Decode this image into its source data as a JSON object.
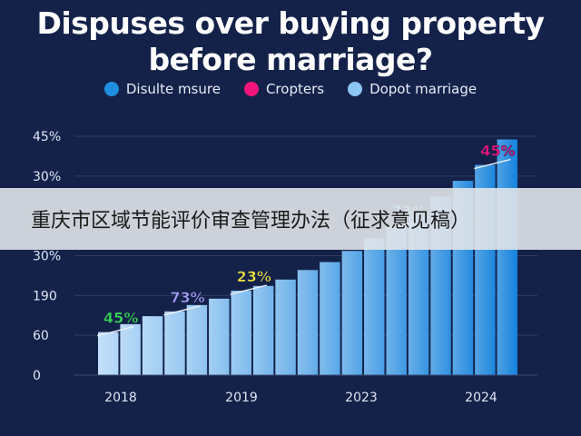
{
  "title_line1": "Dispuses over buying property",
  "title_line2": "before marriage?",
  "legend": [
    {
      "label": "Disulte msure",
      "color": "#1f8fe0"
    },
    {
      "label": "Cropters",
      "color": "#f2157c"
    },
    {
      "label": "Dopot marriage",
      "color": "#8cc6f2"
    }
  ],
  "banner_text": "重庆市区域节能评价审查管理办法（征求意见稿）",
  "chart_data": {
    "type": "bar",
    "y_tick_labels": [
      "0",
      "60",
      "190",
      "30%",
      "",
      "30%",
      "45%"
    ],
    "x_tick_labels": [
      "2018",
      "2019",
      "2023",
      "2024"
    ],
    "values": [
      27,
      32,
      37,
      40,
      44,
      48,
      53,
      56,
      60,
      66,
      71,
      78,
      86,
      94,
      103,
      112,
      122,
      132,
      148
    ],
    "annotations": [
      {
        "text": "45%",
        "bar_index": 0,
        "color": "#39e052"
      },
      {
        "text": "73%",
        "bar_index": 3,
        "color": "#a99ef5"
      },
      {
        "text": "23%",
        "bar_index": 6,
        "color": "#f3e43c"
      },
      {
        "text": "73%",
        "bar_index": 13,
        "color": "#7fe6ef"
      },
      {
        "text": "45%",
        "bar_index": 17,
        "color": "#f2157c"
      }
    ],
    "ylim": [
      0,
      150
    ],
    "grid": true,
    "legend_position": "top"
  }
}
